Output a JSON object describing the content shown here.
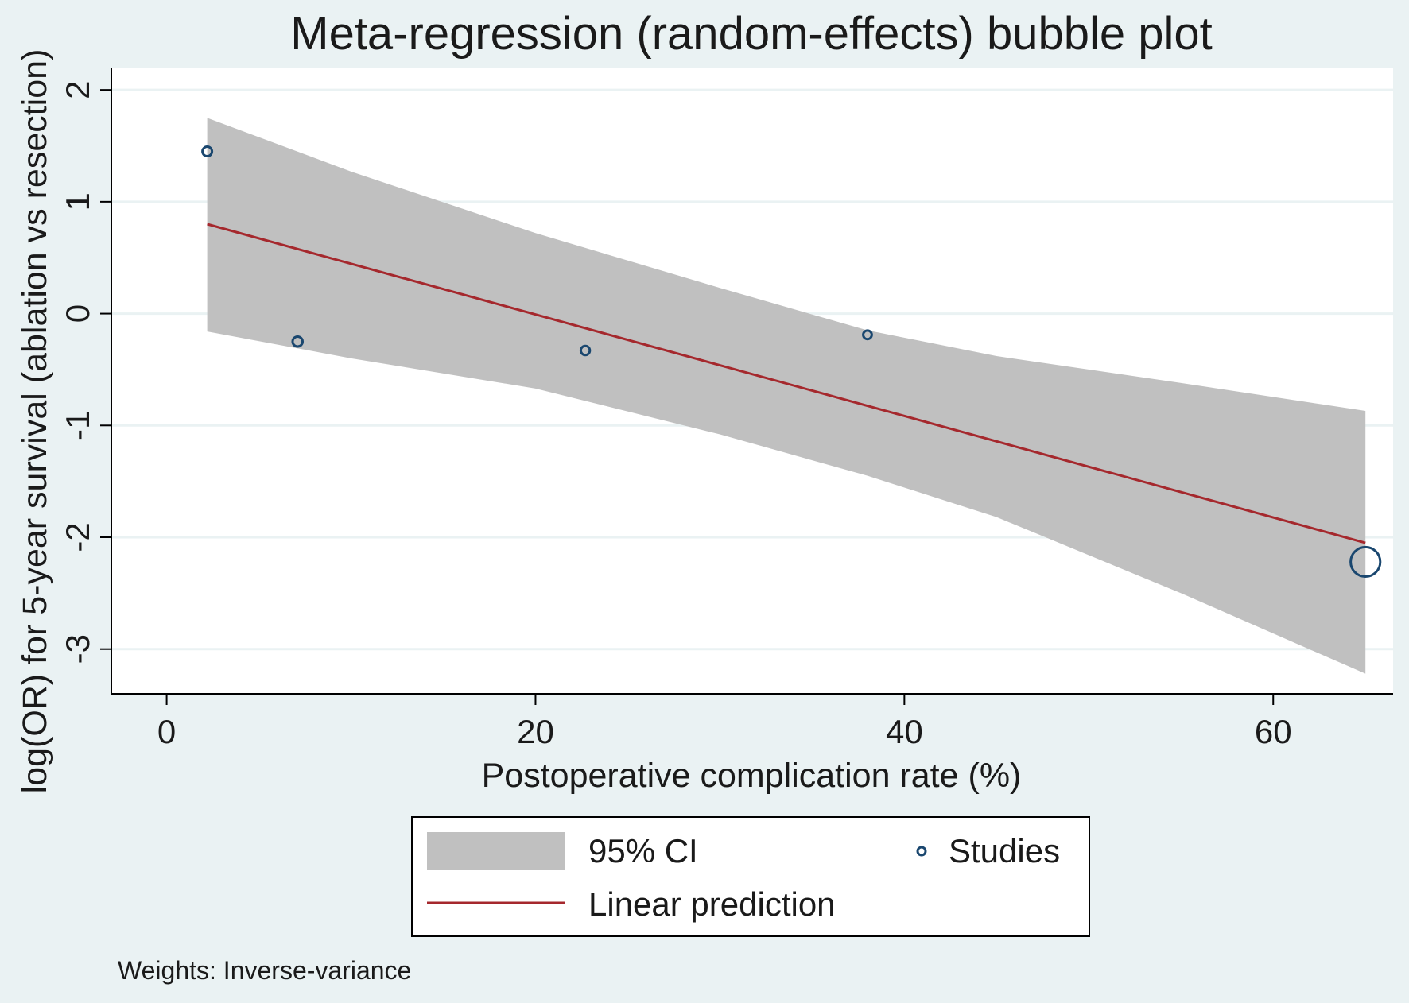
{
  "chart_data": {
    "type": "scatter",
    "title": "Meta-regression (random-effects) bubble plot",
    "xlabel": "Postoperative complication rate (%)",
    "ylabel": "log(OR) for 5-year survival (ablation vs resection)",
    "xlim": [
      -3,
      66.5
    ],
    "ylim": [
      -3.4,
      2.2
    ],
    "xticks": [
      0,
      20,
      40,
      60
    ],
    "yticks": [
      -3,
      -2,
      -1,
      0,
      1,
      2
    ],
    "grid": true,
    "legend_position": "bottom",
    "footnote": "Weights: Inverse-variance",
    "legend": [
      {
        "key": "ci",
        "label": "95% CI"
      },
      {
        "key": "studies",
        "label": "Studies"
      },
      {
        "key": "line",
        "label": "Linear prediction"
      }
    ],
    "studies": [
      {
        "x": 2.2,
        "y": 1.45,
        "weight": 1.0
      },
      {
        "x": 7.1,
        "y": -0.25,
        "weight": 1.05
      },
      {
        "x": 22.7,
        "y": -0.33,
        "weight": 0.95
      },
      {
        "x": 38.0,
        "y": -0.19,
        "weight": 0.9
      },
      {
        "x": 65.0,
        "y": -2.22,
        "weight": 3.1
      }
    ],
    "linear_prediction": {
      "x": [
        2.2,
        65.0
      ],
      "y": [
        0.8,
        -2.05
      ]
    },
    "ci_band": {
      "x": [
        2.2,
        10,
        20,
        30,
        38,
        45,
        55,
        65
      ],
      "upper": [
        1.75,
        1.27,
        0.72,
        0.23,
        -0.15,
        -0.38,
        -0.62,
        -0.87
      ],
      "lower": [
        -0.16,
        -0.4,
        -0.67,
        -1.08,
        -1.45,
        -1.82,
        -2.5,
        -3.22
      ]
    },
    "colors": {
      "background": "#eaf2f3",
      "plot_background": "#ffffff",
      "ci_fill": "#c0c0c0",
      "line": "#a5282d",
      "marker": "#1a476f",
      "axis": "#000000",
      "grid": "#eaf2f3"
    }
  }
}
